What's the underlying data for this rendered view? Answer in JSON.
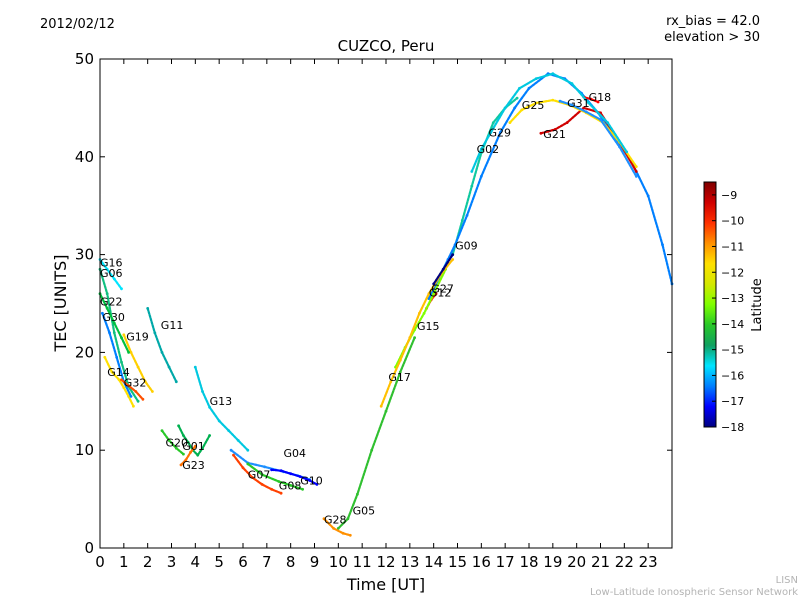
{
  "header": {
    "date": "2012/02/12",
    "rx_bias": "rx_bias = 42.0",
    "elevation": "elevation > 30"
  },
  "footer": {
    "credit_short": "LISN",
    "credit_long": "Low-Latitude Ionospheric Sensor Network"
  },
  "chart_data": {
    "type": "scatter",
    "title": "CUZCO, Peru",
    "xlabel": "Time [UT]",
    "ylabel": "TEC [UNITS]",
    "xlim": [
      0,
      24
    ],
    "ylim": [
      0,
      50
    ],
    "xticks": [
      0,
      1,
      2,
      3,
      4,
      5,
      6,
      7,
      8,
      9,
      10,
      11,
      12,
      13,
      14,
      15,
      16,
      17,
      18,
      19,
      20,
      21,
      22,
      23
    ],
    "yticks": [
      0,
      10,
      20,
      30,
      40,
      50
    ],
    "colorbar": {
      "label": "Latitude",
      "range": [
        -18,
        -8.5
      ],
      "ticks": [
        -18,
        -17,
        -16,
        -15,
        -14,
        -13,
        -12,
        -11,
        -10,
        -9
      ],
      "colormap": [
        "#00007f",
        "#0000ff",
        "#007fff",
        "#00e5ff",
        "#10a060",
        "#28c828",
        "#7fff00",
        "#d4e800",
        "#ffe000",
        "#ff9000",
        "#ff3000",
        "#d00000",
        "#7f0000"
      ]
    },
    "grid": false,
    "series": [
      {
        "name": "G01",
        "label_x": 3.45,
        "label_y": 10.0,
        "color": "#00b050",
        "points": [
          [
            3.3,
            12.5
          ],
          [
            3.5,
            11.5
          ],
          [
            3.7,
            10.8
          ],
          [
            3.9,
            10.0
          ],
          [
            4.1,
            9.5
          ],
          [
            4.3,
            10.2
          ],
          [
            4.6,
            11.5
          ]
        ]
      },
      {
        "name": "G02",
        "label_x": 15.8,
        "label_y": 40.4,
        "color": "#10c8a0",
        "points": [
          [
            14.8,
            30.0
          ],
          [
            15.2,
            33.5
          ],
          [
            15.6,
            37.0
          ],
          [
            16.0,
            40.4
          ],
          [
            16.5,
            43.5
          ],
          [
            17.0,
            45.0
          ],
          [
            17.5,
            46.0
          ]
        ]
      },
      {
        "name": "G04",
        "label_x": 7.7,
        "label_y": 9.3,
        "color": "#1e90ff",
        "points": [
          [
            5.5,
            10.0
          ],
          [
            6.2,
            8.7
          ],
          [
            6.9,
            8.3
          ],
          [
            7.7,
            7.8
          ],
          [
            8.3,
            7.4
          ],
          [
            8.8,
            7.0
          ]
        ]
      },
      {
        "name": "G05",
        "label_x": 10.6,
        "label_y": 3.4,
        "color": "#30c030",
        "points": [
          [
            10.0,
            2.0
          ],
          [
            10.4,
            3.0
          ],
          [
            10.8,
            5.5
          ],
          [
            11.4,
            10.0
          ],
          [
            12.0,
            14.0
          ],
          [
            12.6,
            18.0
          ],
          [
            13.2,
            21.5
          ]
        ]
      },
      {
        "name": "G06",
        "label_x": 0.0,
        "label_y": 27.7,
        "color": "#10c080",
        "points": [
          [
            0.0,
            28.5
          ],
          [
            0.3,
            26.0
          ],
          [
            0.6,
            22.0
          ],
          [
            0.9,
            19.0
          ],
          [
            1.2,
            16.5
          ],
          [
            1.6,
            15.0
          ]
        ]
      },
      {
        "name": "G07",
        "label_x": 6.2,
        "label_y": 7.1,
        "color": "#ff4000",
        "points": [
          [
            5.6,
            9.5
          ],
          [
            6.0,
            8.2
          ],
          [
            6.4,
            7.2
          ],
          [
            6.8,
            6.5
          ],
          [
            7.2,
            6.0
          ],
          [
            7.6,
            5.6
          ]
        ]
      },
      {
        "name": "G08",
        "label_x": 7.5,
        "label_y": 6.0,
        "color": "#28c828",
        "points": [
          [
            6.2,
            8.6
          ],
          [
            6.8,
            7.5
          ],
          [
            7.5,
            6.8
          ],
          [
            8.0,
            6.4
          ],
          [
            8.5,
            6.0
          ]
        ]
      },
      {
        "name": "G09",
        "label_x": 14.9,
        "label_y": 30.5,
        "color": "#007fff",
        "points": [
          [
            13.8,
            25.5
          ],
          [
            14.2,
            27.5
          ],
          [
            14.6,
            29.5
          ],
          [
            14.9,
            31.0
          ],
          [
            15.4,
            34.0
          ],
          [
            16.0,
            38.0
          ],
          [
            16.8,
            42.5
          ],
          [
            17.4,
            45.0
          ],
          [
            18.0,
            47.0
          ],
          [
            18.8,
            48.5
          ],
          [
            19.5,
            48.0
          ],
          [
            20.2,
            46.5
          ],
          [
            20.9,
            44.5
          ],
          [
            21.6,
            42.0
          ],
          [
            22.3,
            39.5
          ],
          [
            23.0,
            36.0
          ],
          [
            23.6,
            31.0
          ],
          [
            24.0,
            27.0
          ]
        ]
      },
      {
        "name": "G10",
        "label_x": 8.4,
        "label_y": 6.5,
        "color": "#0000ff",
        "points": [
          [
            7.2,
            8.0
          ],
          [
            7.6,
            7.9
          ],
          [
            8.0,
            7.6
          ],
          [
            8.4,
            7.3
          ],
          [
            8.8,
            6.9
          ],
          [
            9.1,
            6.5
          ]
        ]
      },
      {
        "name": "G11",
        "label_x": 2.55,
        "label_y": 22.4,
        "color": "#00a8a8",
        "points": [
          [
            2.0,
            24.5
          ],
          [
            2.3,
            22.0
          ],
          [
            2.6,
            20.0
          ],
          [
            2.9,
            18.5
          ],
          [
            3.2,
            17.0
          ]
        ]
      },
      {
        "name": "G12",
        "label_x": 13.8,
        "label_y": 25.7,
        "color": "#ff3000",
        "points": [
          [
            13.7,
            24.5
          ],
          [
            13.9,
            25.4
          ],
          [
            14.1,
            26.0
          ]
        ]
      },
      {
        "name": "G13",
        "label_x": 4.6,
        "label_y": 14.6,
        "color": "#00c8e0",
        "points": [
          [
            4.0,
            18.5
          ],
          [
            4.3,
            16.0
          ],
          [
            4.6,
            14.4
          ],
          [
            5.0,
            13.0
          ],
          [
            5.4,
            12.0
          ],
          [
            5.8,
            11.0
          ],
          [
            6.2,
            10.0
          ]
        ]
      },
      {
        "name": "G14",
        "label_x": 0.3,
        "label_y": 17.6,
        "color": "#ffe000",
        "points": [
          [
            0.2,
            19.5
          ],
          [
            0.5,
            18.0
          ],
          [
            0.8,
            17.2
          ],
          [
            1.0,
            16.4
          ],
          [
            1.2,
            15.5
          ],
          [
            1.4,
            14.5
          ]
        ]
      },
      {
        "name": "G15",
        "label_x": 13.3,
        "label_y": 22.3,
        "color": "#7fff00",
        "points": [
          [
            12.4,
            18.5
          ],
          [
            12.8,
            20.5
          ],
          [
            13.2,
            22.3
          ],
          [
            13.6,
            24.0
          ],
          [
            14.0,
            26.0
          ],
          [
            14.5,
            28.5
          ]
        ]
      },
      {
        "name": "G16",
        "label_x": 0.0,
        "label_y": 28.8,
        "color": "#00e5ff",
        "points": [
          [
            0.0,
            29.5
          ],
          [
            0.3,
            28.5
          ],
          [
            0.6,
            27.5
          ],
          [
            0.9,
            26.5
          ]
        ]
      },
      {
        "name": "G17",
        "label_x": 12.1,
        "label_y": 17.1,
        "color": "#ffc000",
        "points": [
          [
            11.8,
            14.5
          ],
          [
            12.2,
            17.0
          ],
          [
            12.6,
            19.2
          ],
          [
            13.0,
            21.5
          ],
          [
            13.4,
            24.0
          ],
          [
            13.8,
            26.0
          ],
          [
            14.3,
            28.0
          ],
          [
            14.8,
            29.5
          ]
        ]
      },
      {
        "name": "G18",
        "label_x": 20.5,
        "label_y": 45.7,
        "color": "#ff0000",
        "points": [
          [
            20.3,
            46.1
          ],
          [
            20.6,
            45.9
          ],
          [
            20.9,
            45.6
          ]
        ]
      },
      {
        "name": "G19",
        "label_x": 1.1,
        "label_y": 21.2,
        "color": "#ffd000",
        "points": [
          [
            1.0,
            21.8
          ],
          [
            1.3,
            20.0
          ],
          [
            1.6,
            18.5
          ],
          [
            1.9,
            17.0
          ],
          [
            2.2,
            16.0
          ]
        ]
      },
      {
        "name": "G20",
        "label_x": 2.75,
        "label_y": 10.4,
        "color": "#28c828",
        "points": [
          [
            2.6,
            12.0
          ],
          [
            2.9,
            11.0
          ],
          [
            3.2,
            10.2
          ],
          [
            3.5,
            9.6
          ]
        ]
      },
      {
        "name": "G21",
        "label_x": 18.6,
        "label_y": 41.9,
        "color": "#d00000",
        "points": [
          [
            18.5,
            42.4
          ],
          [
            18.8,
            42.6
          ],
          [
            19.1,
            42.8
          ],
          [
            19.6,
            43.5
          ],
          [
            20.3,
            45.0
          ],
          [
            21.0,
            44.5
          ],
          [
            21.8,
            41.5
          ],
          [
            22.5,
            38.5
          ]
        ]
      },
      {
        "name": "G22",
        "label_x": 0.0,
        "label_y": 24.8,
        "color": "#00c040",
        "points": [
          [
            0.0,
            26.0
          ],
          [
            0.3,
            24.5
          ],
          [
            0.6,
            23.0
          ],
          [
            0.9,
            21.5
          ],
          [
            1.2,
            20.0
          ]
        ]
      },
      {
        "name": "G23",
        "label_x": 3.45,
        "label_y": 8.1,
        "color": "#ff7000",
        "points": [
          [
            3.4,
            8.5
          ],
          [
            3.6,
            9.0
          ],
          [
            3.8,
            9.8
          ],
          [
            4.0,
            10.4
          ]
        ]
      },
      {
        "name": "G25",
        "label_x": 17.7,
        "label_y": 44.9,
        "color": "#ffe000",
        "points": [
          [
            17.2,
            43.5
          ],
          [
            17.7,
            44.8
          ],
          [
            18.3,
            45.5
          ],
          [
            19.0,
            45.8
          ],
          [
            19.7,
            45.3
          ],
          [
            20.4,
            44.5
          ],
          [
            21.1,
            43.5
          ],
          [
            21.8,
            41.5
          ],
          [
            22.5,
            39.0
          ]
        ]
      },
      {
        "name": "G27",
        "label_x": 13.9,
        "label_y": 26.1,
        "color": "#00007f",
        "points": [
          [
            14.0,
            27.0
          ],
          [
            14.4,
            28.5
          ],
          [
            14.8,
            30.0
          ]
        ]
      },
      {
        "name": "G28",
        "label_x": 9.4,
        "label_y": 2.5,
        "color": "#ff9000",
        "points": [
          [
            9.4,
            3.0
          ],
          [
            9.8,
            2.0
          ],
          [
            10.2,
            1.5
          ],
          [
            10.5,
            1.3
          ]
        ]
      },
      {
        "name": "G29",
        "label_x": 16.3,
        "label_y": 42.1,
        "color": "#00c8e0",
        "points": [
          [
            15.6,
            38.5
          ],
          [
            16.0,
            40.8
          ],
          [
            16.4,
            42.5
          ],
          [
            17.0,
            45.0
          ],
          [
            17.6,
            47.0
          ],
          [
            18.3,
            48.0
          ],
          [
            19.0,
            48.5
          ],
          [
            19.8,
            47.5
          ],
          [
            20.5,
            45.5
          ],
          [
            21.3,
            43.5
          ],
          [
            22.1,
            40.5
          ]
        ]
      },
      {
        "name": "G30",
        "label_x": 0.1,
        "label_y": 23.2,
        "color": "#007fff",
        "points": [
          [
            0.1,
            24.0
          ],
          [
            0.4,
            22.0
          ],
          [
            0.7,
            19.5
          ],
          [
            1.0,
            17.0
          ],
          [
            1.3,
            15.5
          ]
        ]
      },
      {
        "name": "G31",
        "label_x": 19.6,
        "label_y": 45.1,
        "color": "#1e90ff",
        "points": [
          [
            19.3,
            45.7
          ],
          [
            19.8,
            45.3
          ],
          [
            20.4,
            44.6
          ],
          [
            21.0,
            43.8
          ],
          [
            21.8,
            41.0
          ],
          [
            22.5,
            38.0
          ]
        ]
      },
      {
        "name": "G32",
        "label_x": 1.0,
        "label_y": 16.5,
        "color": "#ff5000",
        "points": [
          [
            0.9,
            17.2
          ],
          [
            1.2,
            16.6
          ],
          [
            1.5,
            16.0
          ],
          [
            1.8,
            15.2
          ]
        ]
      }
    ]
  }
}
